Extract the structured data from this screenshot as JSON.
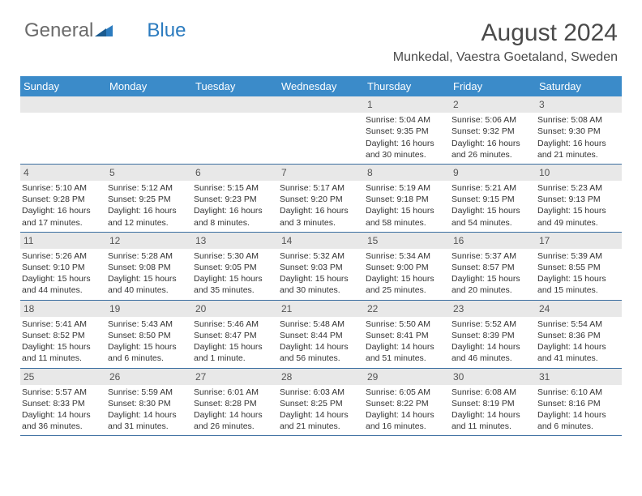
{
  "logo": {
    "text1": "General",
    "text2": "Blue"
  },
  "title": "August 2024",
  "location": "Munkedal, Vaestra Goetaland, Sweden",
  "colors": {
    "header_bg": "#3b8bc9",
    "header_text": "#ffffff",
    "daynum_bg": "#e8e8e8",
    "border": "#3b6ea0"
  },
  "day_names": [
    "Sunday",
    "Monday",
    "Tuesday",
    "Wednesday",
    "Thursday",
    "Friday",
    "Saturday"
  ],
  "weeks": [
    [
      null,
      null,
      null,
      null,
      {
        "n": "1",
        "sr": "Sunrise: 5:04 AM",
        "ss": "Sunset: 9:35 PM",
        "dl": "Daylight: 16 hours and 30 minutes."
      },
      {
        "n": "2",
        "sr": "Sunrise: 5:06 AM",
        "ss": "Sunset: 9:32 PM",
        "dl": "Daylight: 16 hours and 26 minutes."
      },
      {
        "n": "3",
        "sr": "Sunrise: 5:08 AM",
        "ss": "Sunset: 9:30 PM",
        "dl": "Daylight: 16 hours and 21 minutes."
      }
    ],
    [
      {
        "n": "4",
        "sr": "Sunrise: 5:10 AM",
        "ss": "Sunset: 9:28 PM",
        "dl": "Daylight: 16 hours and 17 minutes."
      },
      {
        "n": "5",
        "sr": "Sunrise: 5:12 AM",
        "ss": "Sunset: 9:25 PM",
        "dl": "Daylight: 16 hours and 12 minutes."
      },
      {
        "n": "6",
        "sr": "Sunrise: 5:15 AM",
        "ss": "Sunset: 9:23 PM",
        "dl": "Daylight: 16 hours and 8 minutes."
      },
      {
        "n": "7",
        "sr": "Sunrise: 5:17 AM",
        "ss": "Sunset: 9:20 PM",
        "dl": "Daylight: 16 hours and 3 minutes."
      },
      {
        "n": "8",
        "sr": "Sunrise: 5:19 AM",
        "ss": "Sunset: 9:18 PM",
        "dl": "Daylight: 15 hours and 58 minutes."
      },
      {
        "n": "9",
        "sr": "Sunrise: 5:21 AM",
        "ss": "Sunset: 9:15 PM",
        "dl": "Daylight: 15 hours and 54 minutes."
      },
      {
        "n": "10",
        "sr": "Sunrise: 5:23 AM",
        "ss": "Sunset: 9:13 PM",
        "dl": "Daylight: 15 hours and 49 minutes."
      }
    ],
    [
      {
        "n": "11",
        "sr": "Sunrise: 5:26 AM",
        "ss": "Sunset: 9:10 PM",
        "dl": "Daylight: 15 hours and 44 minutes."
      },
      {
        "n": "12",
        "sr": "Sunrise: 5:28 AM",
        "ss": "Sunset: 9:08 PM",
        "dl": "Daylight: 15 hours and 40 minutes."
      },
      {
        "n": "13",
        "sr": "Sunrise: 5:30 AM",
        "ss": "Sunset: 9:05 PM",
        "dl": "Daylight: 15 hours and 35 minutes."
      },
      {
        "n": "14",
        "sr": "Sunrise: 5:32 AM",
        "ss": "Sunset: 9:03 PM",
        "dl": "Daylight: 15 hours and 30 minutes."
      },
      {
        "n": "15",
        "sr": "Sunrise: 5:34 AM",
        "ss": "Sunset: 9:00 PM",
        "dl": "Daylight: 15 hours and 25 minutes."
      },
      {
        "n": "16",
        "sr": "Sunrise: 5:37 AM",
        "ss": "Sunset: 8:57 PM",
        "dl": "Daylight: 15 hours and 20 minutes."
      },
      {
        "n": "17",
        "sr": "Sunrise: 5:39 AM",
        "ss": "Sunset: 8:55 PM",
        "dl": "Daylight: 15 hours and 15 minutes."
      }
    ],
    [
      {
        "n": "18",
        "sr": "Sunrise: 5:41 AM",
        "ss": "Sunset: 8:52 PM",
        "dl": "Daylight: 15 hours and 11 minutes."
      },
      {
        "n": "19",
        "sr": "Sunrise: 5:43 AM",
        "ss": "Sunset: 8:50 PM",
        "dl": "Daylight: 15 hours and 6 minutes."
      },
      {
        "n": "20",
        "sr": "Sunrise: 5:46 AM",
        "ss": "Sunset: 8:47 PM",
        "dl": "Daylight: 15 hours and 1 minute."
      },
      {
        "n": "21",
        "sr": "Sunrise: 5:48 AM",
        "ss": "Sunset: 8:44 PM",
        "dl": "Daylight: 14 hours and 56 minutes."
      },
      {
        "n": "22",
        "sr": "Sunrise: 5:50 AM",
        "ss": "Sunset: 8:41 PM",
        "dl": "Daylight: 14 hours and 51 minutes."
      },
      {
        "n": "23",
        "sr": "Sunrise: 5:52 AM",
        "ss": "Sunset: 8:39 PM",
        "dl": "Daylight: 14 hours and 46 minutes."
      },
      {
        "n": "24",
        "sr": "Sunrise: 5:54 AM",
        "ss": "Sunset: 8:36 PM",
        "dl": "Daylight: 14 hours and 41 minutes."
      }
    ],
    [
      {
        "n": "25",
        "sr": "Sunrise: 5:57 AM",
        "ss": "Sunset: 8:33 PM",
        "dl": "Daylight: 14 hours and 36 minutes."
      },
      {
        "n": "26",
        "sr": "Sunrise: 5:59 AM",
        "ss": "Sunset: 8:30 PM",
        "dl": "Daylight: 14 hours and 31 minutes."
      },
      {
        "n": "27",
        "sr": "Sunrise: 6:01 AM",
        "ss": "Sunset: 8:28 PM",
        "dl": "Daylight: 14 hours and 26 minutes."
      },
      {
        "n": "28",
        "sr": "Sunrise: 6:03 AM",
        "ss": "Sunset: 8:25 PM",
        "dl": "Daylight: 14 hours and 21 minutes."
      },
      {
        "n": "29",
        "sr": "Sunrise: 6:05 AM",
        "ss": "Sunset: 8:22 PM",
        "dl": "Daylight: 14 hours and 16 minutes."
      },
      {
        "n": "30",
        "sr": "Sunrise: 6:08 AM",
        "ss": "Sunset: 8:19 PM",
        "dl": "Daylight: 14 hours and 11 minutes."
      },
      {
        "n": "31",
        "sr": "Sunrise: 6:10 AM",
        "ss": "Sunset: 8:16 PM",
        "dl": "Daylight: 14 hours and 6 minutes."
      }
    ]
  ]
}
